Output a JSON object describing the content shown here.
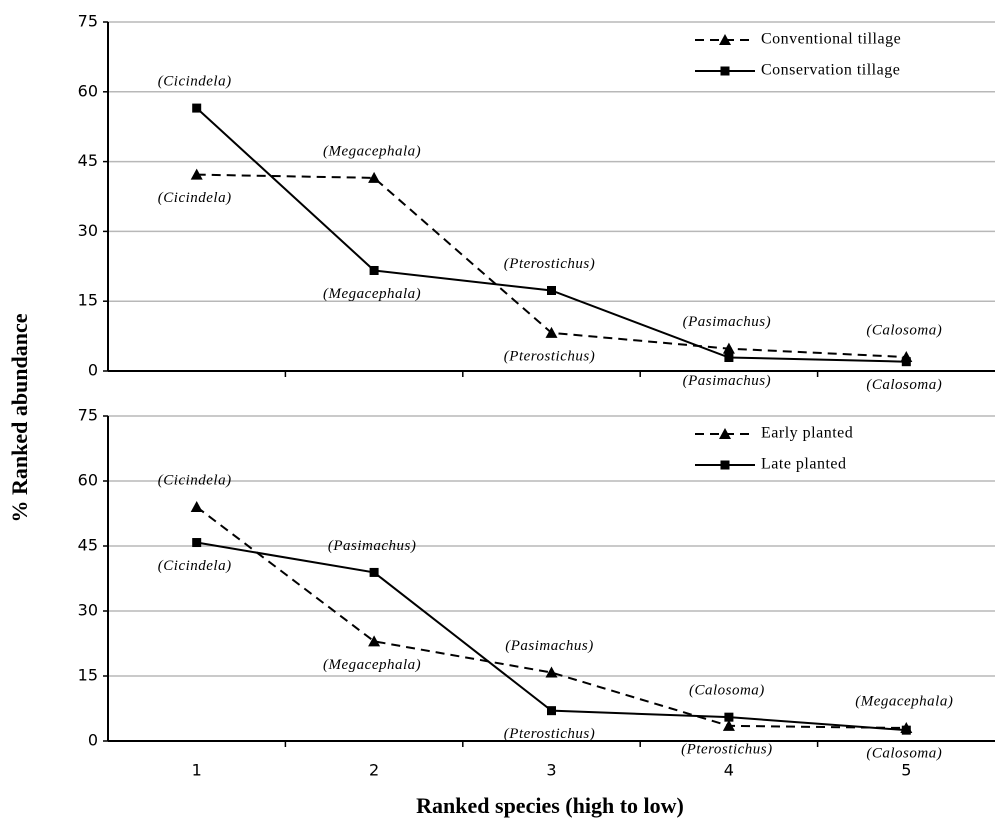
{
  "chart_data": [
    {
      "type": "line",
      "y_label": "% Ranked abundance",
      "categories": [
        null,
        null,
        null,
        null,
        null
      ],
      "ylim": [
        0,
        75
      ],
      "yticks": [
        0,
        15,
        30,
        45,
        60,
        75
      ],
      "grid": true,
      "legend": "upper right",
      "series": [
        {
          "name": "Conventional tillage",
          "color": "#000000",
          "dashed": true,
          "marker": "triangle",
          "values": [
            42.2,
            41.5,
            8.2,
            4.8,
            3.0
          ],
          "point_labels": [
            "(Cicindela)",
            "(Megacephala)",
            "(Pterostichus)",
            "(Pasimachus)",
            "(Calosoma)"
          ]
        },
        {
          "name": "Conservation tillage",
          "color": "#000000",
          "dashed": false,
          "marker": "square",
          "values": [
            56.5,
            21.6,
            17.3,
            2.9,
            2.0
          ],
          "point_labels": [
            "(Cicindela)",
            "(Megacephala)",
            "(Pterostichus)",
            "(Pasimachus)",
            "(Calosoma)"
          ]
        }
      ]
    },
    {
      "type": "line",
      "x_label": "Ranked species (high to low)",
      "categories": [
        "1",
        "2",
        "3",
        "4",
        "5"
      ],
      "ylim": [
        0,
        75
      ],
      "yticks": [
        0,
        15,
        30,
        45,
        60,
        75
      ],
      "grid": true,
      "legend": "upper right",
      "series": [
        {
          "name": "Early planted",
          "color": "#000000",
          "dashed": true,
          "marker": "triangle",
          "values": [
            54.0,
            23.0,
            15.8,
            3.5,
            3.0
          ],
          "point_labels": [
            "(Cicindela)",
            "(Megacephala)",
            "(Pasimachus)",
            "(Pterostichus)",
            "(Megacephala)"
          ]
        },
        {
          "name": "Late planted",
          "color": "#000000",
          "dashed": false,
          "marker": "square",
          "values": [
            45.8,
            38.9,
            7.0,
            5.5,
            2.5
          ],
          "point_labels": [
            "(Cicindela)",
            "(Pasimachus)",
            "(Pterostichus)",
            "(Calosoma)",
            "(Calosoma)"
          ]
        }
      ]
    }
  ]
}
